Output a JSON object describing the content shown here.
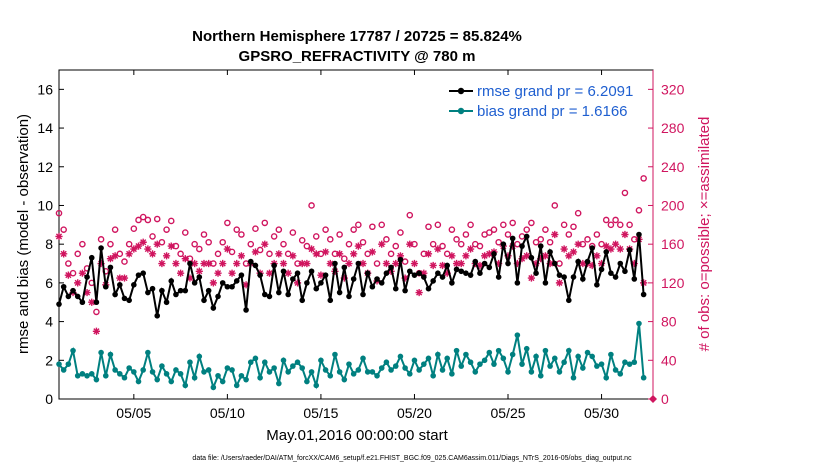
{
  "chart_data": {
    "type": "line",
    "title": [
      "Northern Hemisphere 17787 / 20725 = 85.824%",
      "GPSRO_REFRACTIVITY @ 780 m"
    ],
    "xlabel": "May.01,2016 00:00:00 start",
    "ylabel_left": "rmse and bias (model - observation)",
    "ylabel_right": "# of obs: o=possible; ×=assimilated",
    "footnote": "data file: /Users/raeder/DAI/ATM_forcXX/CAM6_setup/f.e21.FHIST_BGC.f09_025.CAM6assim.011/Diags_NTrS_2016-05/obs_diag_output.nc",
    "xlim": [
      1,
      32.75
    ],
    "ylim_left": [
      0,
      17
    ],
    "ylim_right": [
      0,
      340
    ],
    "x_ticks": [
      5,
      10,
      15,
      20,
      25,
      30
    ],
    "x_tick_labels": [
      "05/05",
      "05/10",
      "05/15",
      "05/20",
      "05/25",
      "05/30"
    ],
    "y_left_ticks": [
      0,
      2,
      4,
      6,
      8,
      10,
      12,
      14,
      16
    ],
    "y_left_tick_labels": [
      "0",
      "2",
      "4",
      "6",
      "8",
      "10",
      "12",
      "14",
      "16"
    ],
    "y_right_ticks": [
      0,
      40,
      80,
      120,
      160,
      200,
      240,
      280,
      320
    ],
    "y_right_tick_labels": [
      "0",
      "40",
      "80",
      "120",
      "160",
      "200",
      "240",
      "280",
      "320"
    ],
    "colors": {
      "rmse": "#000000",
      "bias": "#008080",
      "counts": "#d0155f",
      "legend_text": "#1f5fd0",
      "title": "#000000"
    },
    "x": [
      1.0,
      1.25,
      1.5,
      1.75,
      2.0,
      2.25,
      2.5,
      2.75,
      3.0,
      3.25,
      3.5,
      3.75,
      4.0,
      4.25,
      4.5,
      4.75,
      5.0,
      5.25,
      5.5,
      5.75,
      6.0,
      6.25,
      6.5,
      6.75,
      7.0,
      7.25,
      7.5,
      7.75,
      8.0,
      8.25,
      8.5,
      8.75,
      9.0,
      9.25,
      9.5,
      9.75,
      10.0,
      10.25,
      10.5,
      10.75,
      11.0,
      11.25,
      11.5,
      11.75,
      12.0,
      12.25,
      12.5,
      12.75,
      13.0,
      13.25,
      13.5,
      13.75,
      14.0,
      14.25,
      14.5,
      14.75,
      15.0,
      15.25,
      15.5,
      15.75,
      16.0,
      16.25,
      16.5,
      16.75,
      17.0,
      17.25,
      17.5,
      17.75,
      18.0,
      18.25,
      18.5,
      18.75,
      19.0,
      19.25,
      19.5,
      19.75,
      20.0,
      20.25,
      20.5,
      20.75,
      21.0,
      21.25,
      21.5,
      21.75,
      22.0,
      22.25,
      22.5,
      22.75,
      23.0,
      23.25,
      23.5,
      23.75,
      24.0,
      24.25,
      24.5,
      24.75,
      25.0,
      25.25,
      25.5,
      25.75,
      26.0,
      26.25,
      26.5,
      26.75,
      27.0,
      27.25,
      27.5,
      27.75,
      28.0,
      28.25,
      28.5,
      28.75,
      29.0,
      29.25,
      29.5,
      29.75,
      30.0,
      30.25,
      30.5,
      30.75,
      31.0,
      31.25,
      31.5,
      31.75,
      32.0,
      32.25
    ],
    "series": [
      {
        "name": "rmse grand pr = 6.2091",
        "axis": "left",
        "marker": "filled-circle",
        "values": [
          4.9,
          5.8,
          5.3,
          5.6,
          5.3,
          5.0,
          6.3,
          7.3,
          5.0,
          7.8,
          5.8,
          6.8,
          5.4,
          5.9,
          5.2,
          5.1,
          5.9,
          6.4,
          6.5,
          5.5,
          5.7,
          4.3,
          5.6,
          5.0,
          6.1,
          5.4,
          5.6,
          5.6,
          7.0,
          6.0,
          6.3,
          5.1,
          5.6,
          4.7,
          5.3,
          6.0,
          5.8,
          5.8,
          6.1,
          6.4,
          4.6,
          7.1,
          6.9,
          6.4,
          5.4,
          5.3,
          6.9,
          5.5,
          6.6,
          5.4,
          6.2,
          6.5,
          5.1,
          6.0,
          6.6,
          5.7,
          6.0,
          6.4,
          5.1,
          7.0,
          5.5,
          6.8,
          5.3,
          6.2,
          7.0,
          5.4,
          6.5,
          5.8,
          6.2,
          6.0,
          6.5,
          6.8,
          5.7,
          7.2,
          5.6,
          6.6,
          6.4,
          6.5,
          6.3,
          5.7,
          6.1,
          6.5,
          6.3,
          6.9,
          6.0,
          6.7,
          6.6,
          6.5,
          6.4,
          7.1,
          6.5,
          7.0,
          6.8,
          7.5,
          6.3,
          8.0,
          7.0,
          8.3,
          6.0,
          7.9,
          8.4,
          7.3,
          6.5,
          7.9,
          6.0,
          7.6,
          7.0,
          6.4,
          6.3,
          5.1,
          6.3,
          7.1,
          6.2,
          7.1,
          7.8,
          5.9,
          6.7,
          7.6,
          6.5,
          6.3,
          7.0,
          6.6,
          7.7,
          6.2,
          8.5,
          5.4
        ]
      },
      {
        "name": "bias grand pr = 1.6166",
        "axis": "left",
        "marker": "filled-circle",
        "values": [
          1.8,
          1.5,
          1.8,
          2.5,
          1.2,
          1.3,
          1.2,
          1.3,
          1.0,
          2.4,
          1.2,
          2.3,
          1.5,
          1.3,
          1.1,
          1.6,
          1.4,
          0.9,
          1.5,
          2.4,
          1.4,
          1.0,
          1.7,
          1.3,
          0.9,
          1.5,
          1.3,
          0.7,
          1.9,
          1.1,
          2.2,
          1.4,
          1.5,
          0.6,
          1.2,
          0.9,
          1.6,
          1.5,
          0.7,
          1.2,
          1.0,
          1.9,
          2.1,
          1.1,
          1.9,
          1.4,
          1.6,
          0.8,
          2.0,
          1.4,
          1.7,
          1.9,
          1.6,
          0.9,
          1.4,
          0.7,
          2.0,
          1.5,
          1.2,
          2.3,
          1.4,
          1.0,
          1.8,
          1.3,
          1.5,
          2.1,
          1.4,
          1.4,
          1.2,
          1.6,
          1.9,
          1.5,
          1.7,
          2.2,
          1.6,
          1.3,
          2.0,
          1.5,
          1.8,
          2.1,
          1.2,
          2.3,
          1.5,
          2.1,
          1.3,
          2.5,
          1.7,
          2.3,
          1.9,
          1.4,
          1.8,
          2.0,
          2.4,
          1.8,
          2.5,
          2.1,
          1.4,
          2.3,
          3.3,
          1.8,
          2.6,
          1.4,
          2.2,
          1.2,
          2.5,
          1.7,
          2.1,
          1.4,
          1.9,
          2.5,
          1.1,
          2.2,
          1.6,
          2.4,
          2.2,
          1.7,
          1.8,
          1.1,
          2.3,
          1.5,
          1.3,
          1.9,
          1.8,
          1.9,
          3.9,
          1.1
        ]
      },
      {
        "name": "possible obs (o)",
        "axis": "right",
        "marker": "open-circle",
        "values": [
          192,
          175,
          140,
          130,
          150,
          160,
          135,
          120,
          90,
          165,
          132,
          160,
          175,
          150,
          142,
          160,
          176,
          185,
          188,
          185,
          168,
          186,
          162,
          175,
          184,
          158,
          150,
          172,
          145,
          160,
          155,
          170,
          162,
          140,
          150,
          162,
          182,
          152,
          175,
          170,
          140,
          160,
          176,
          154,
          182,
          150,
          168,
          175,
          160,
          150,
          172,
          140,
          164,
          158,
          200,
          168,
          150,
          175,
          165,
          150,
          170,
          145,
          160,
          175,
          180,
          162,
          150,
          178,
          140,
          180,
          165,
          150,
          158,
          172,
          142,
          190,
          160,
          130,
          150,
          178,
          160,
          180,
          158,
          150,
          175,
          165,
          160,
          170,
          180,
          160,
          158,
          170,
          172,
          175,
          162,
          180,
          170,
          182,
          160,
          168,
          175,
          182,
          162,
          165,
          175,
          162,
          200,
          140,
          180,
          170,
          178,
          192,
          160,
          165,
          158,
          170,
          160,
          185,
          180,
          185,
          180,
          213,
          180,
          165,
          195,
          228
        ]
      },
      {
        "name": "assimilated obs (×)",
        "axis": "right",
        "marker": "asterisk",
        "values": [
          168,
          150,
          128,
          110,
          120,
          130,
          110,
          100,
          70,
          140,
          118,
          145,
          148,
          125,
          125,
          150,
          155,
          158,
          162,
          155,
          150,
          160,
          140,
          148,
          158,
          140,
          130,
          145,
          125,
          140,
          132,
          140,
          140,
          120,
          130,
          140,
          155,
          130,
          140,
          148,
          118,
          140,
          152,
          130,
          160,
          130,
          140,
          150,
          140,
          130,
          148,
          120,
          140,
          140,
          155,
          150,
          128,
          152,
          140,
          132,
          150,
          125,
          140,
          150,
          158,
          140,
          130,
          152,
          122,
          160,
          140,
          132,
          140,
          148,
          125,
          160,
          140,
          110,
          130,
          150,
          138,
          155,
          138,
          130,
          148,
          140,
          140,
          148,
          155,
          140,
          138,
          148,
          150,
          152,
          140,
          158,
          148,
          158,
          140,
          145,
          148,
          125,
          140,
          145,
          148,
          140,
          170,
          120,
          155,
          148,
          152,
          160,
          140,
          140,
          138,
          148,
          140,
          158,
          155,
          160,
          155,
          170,
          155,
          140,
          165,
          120
        ]
      }
    ],
    "legend": {
      "placement": "top-right",
      "entries": [
        "rmse grand pr = 6.2091",
        "bias grand pr = 1.6166"
      ]
    }
  }
}
